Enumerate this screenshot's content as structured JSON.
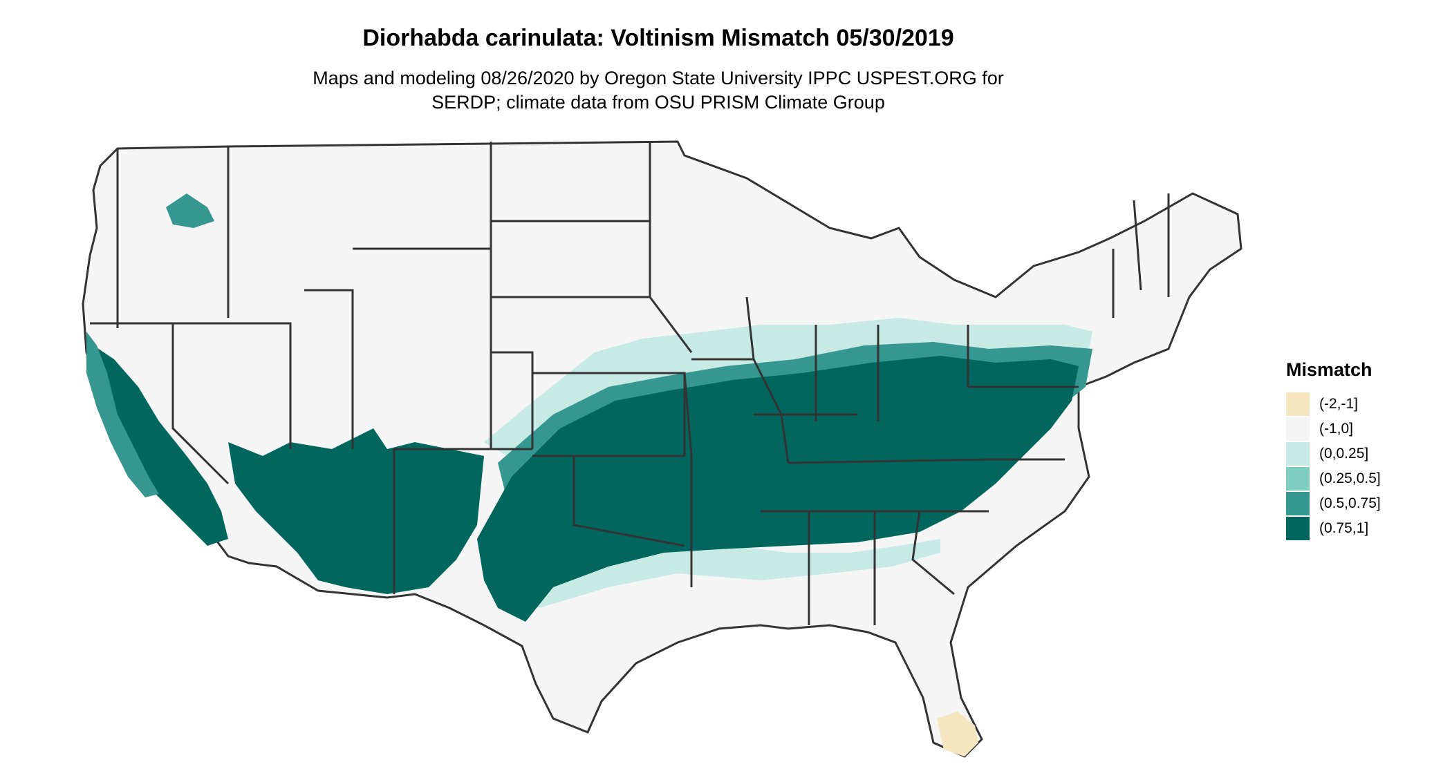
{
  "title": "Diorhabda carinulata: Voltinism Mismatch 05/30/2019",
  "subtitle_lines": [
    "Maps and modeling 08/26/2020 by Oregon State University IPPC USPEST.ORG for",
    "SERDP; climate data from OSU PRISM Climate Group"
  ],
  "legend": {
    "title": "Mismatch",
    "items": [
      {
        "label": "(-2,-1]",
        "color": "#f5e6c0"
      },
      {
        "label": "(-1,0]",
        "color": "#f5f5f5"
      },
      {
        "label": "(0,0.25]",
        "color": "#c7eae4"
      },
      {
        "label": "(0.25,0.5]",
        "color": "#80cdc1"
      },
      {
        "label": "(0.5,0.75]",
        "color": "#35978f"
      },
      {
        "label": "(0.75,1]",
        "color": "#01665e"
      }
    ]
  },
  "colors": {
    "state_border": "#333333",
    "background": "#ffffff"
  }
}
